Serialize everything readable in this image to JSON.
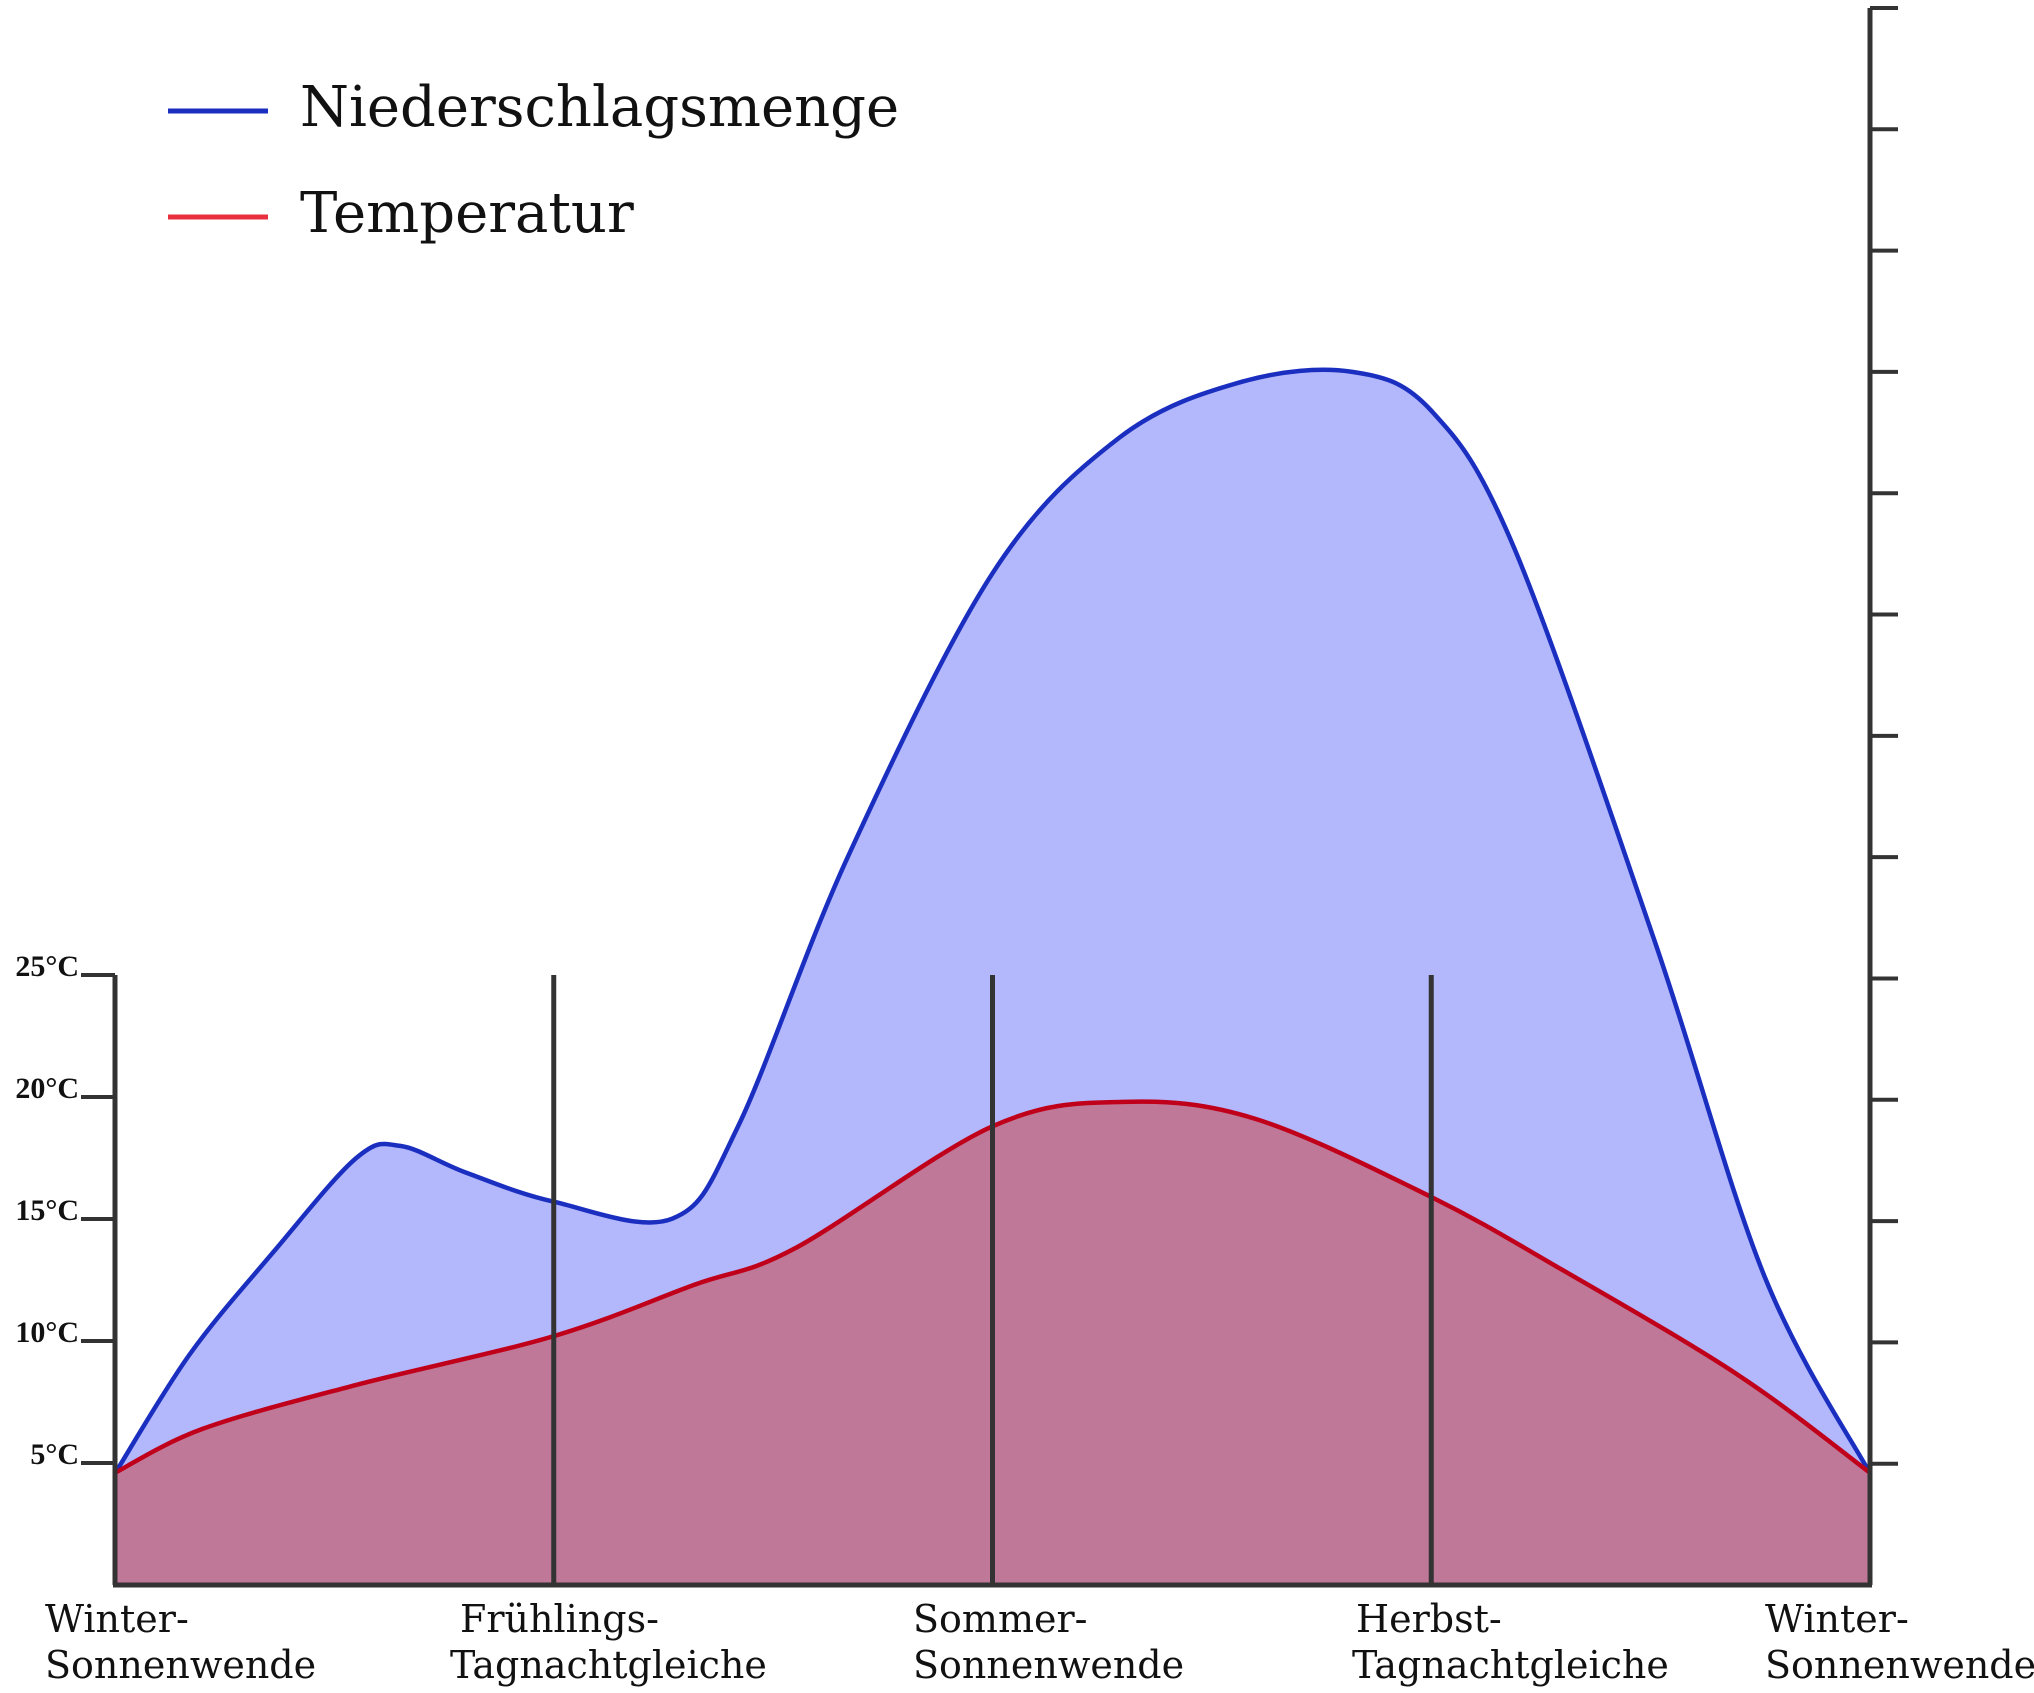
{
  "chart_data": {
    "type": "area",
    "legend": {
      "position": "top-left",
      "entries": [
        {
          "label": "Niederschlagsmenge",
          "color": "#1a2fc0"
        },
        {
          "label": "Temperatur",
          "color": "#e8303f"
        }
      ]
    },
    "x_labels": [
      [
        "Winter-",
        "Sonnenwende"
      ],
      [
        "Frühlings-",
        "Tagnachtgleiche"
      ],
      [
        "Sommer-",
        "Sonnenwende"
      ],
      [
        "Herbst-",
        "Tagnachtgleiche"
      ],
      [
        "Winter-",
        "Sonnenwende"
      ]
    ],
    "x_range": [
      0,
      4
    ],
    "left_axis": {
      "ticks": [
        5,
        10,
        15,
        20,
        25
      ],
      "tick_labels": [
        "5°C",
        "10°C",
        "15°C",
        "20°C",
        "25°C"
      ],
      "ylim": [
        0,
        25
      ]
    },
    "right_axis": {
      "tick_count": 13,
      "labels_shown": false,
      "ylim": [
        0,
        65
      ]
    },
    "grid": false,
    "series": [
      {
        "name": "Niederschlagsmenge",
        "axis": "right",
        "line_color": "#1a2fc0",
        "fill_color": "#b3b7fc",
        "points": [
          [
            0,
            4.6
          ],
          [
            0.17,
            9.5
          ],
          [
            0.36,
            13.7
          ],
          [
            0.55,
            17.6
          ],
          [
            0.65,
            18.1
          ],
          [
            0.8,
            17.0
          ],
          [
            1.0,
            15.8
          ],
          [
            1.27,
            15.1
          ],
          [
            1.42,
            18.9
          ],
          [
            1.67,
            30.0
          ],
          [
            2.0,
            41.7
          ],
          [
            2.29,
            47.3
          ],
          [
            2.57,
            49.6
          ],
          [
            2.82,
            50.0
          ],
          [
            3.0,
            48.4
          ],
          [
            3.19,
            42.7
          ],
          [
            3.51,
            26.5
          ],
          [
            3.76,
            12.7
          ],
          [
            4.0,
            4.6
          ]
        ]
      },
      {
        "name": "Temperatur",
        "axis": "left",
        "line_color": "#c0001a",
        "fill_color": "#c07898",
        "points": [
          [
            0,
            4.6
          ],
          [
            0.2,
            6.4
          ],
          [
            0.55,
            8.2
          ],
          [
            1.0,
            10.2
          ],
          [
            1.32,
            12.3
          ],
          [
            1.55,
            13.8
          ],
          [
            2.0,
            18.8
          ],
          [
            2.3,
            19.8
          ],
          [
            2.6,
            19.1
          ],
          [
            3.0,
            15.9
          ],
          [
            3.3,
            12.9
          ],
          [
            3.7,
            8.6
          ],
          [
            4.0,
            4.6
          ]
        ]
      }
    ]
  }
}
